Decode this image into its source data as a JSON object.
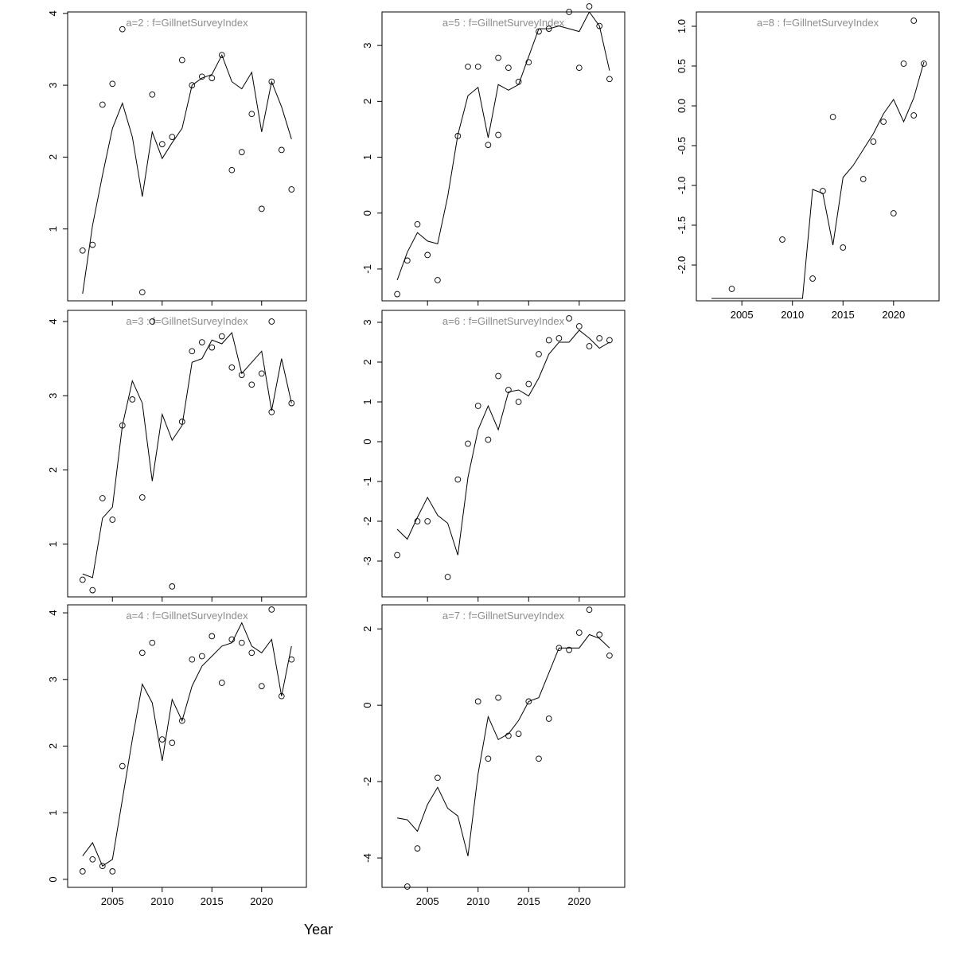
{
  "figure": {
    "xlabel": "Year",
    "colors": {
      "axis": "#000000",
      "line": "#000000",
      "point": "#000000",
      "title": "#8c8c8c",
      "background": "#ffffff"
    }
  },
  "chart_data": [
    {
      "id": "a2",
      "type": "scatter",
      "col": 0,
      "row": 0,
      "title": "a=2  :  f=GillnetSurveyIndex",
      "xlim": [
        2000.5,
        2024.5
      ],
      "x_ticks": [
        2005,
        2010,
        2015,
        2020
      ],
      "show_x_labels": false,
      "ylim": [
        0.0,
        4.02
      ],
      "y_ticks": [
        1,
        2,
        3,
        4
      ],
      "points": [
        [
          2002,
          0.7
        ],
        [
          2003,
          0.78
        ],
        [
          2004,
          2.73
        ],
        [
          2005,
          3.02
        ],
        [
          2006,
          3.78
        ],
        [
          2008,
          0.12
        ],
        [
          2009,
          2.87
        ],
        [
          2010,
          2.18
        ],
        [
          2011,
          2.28
        ],
        [
          2012,
          3.35
        ],
        [
          2013,
          3.0
        ],
        [
          2014,
          3.12
        ],
        [
          2015,
          3.1
        ],
        [
          2016,
          3.42
        ],
        [
          2017,
          1.82
        ],
        [
          2018,
          2.07
        ],
        [
          2019,
          2.6
        ],
        [
          2020,
          1.28
        ],
        [
          2021,
          3.05
        ],
        [
          2022,
          2.1
        ],
        [
          2023,
          1.55
        ]
      ],
      "line": [
        [
          2002,
          0.1
        ],
        [
          2003,
          1.05
        ],
        [
          2004,
          1.75
        ],
        [
          2005,
          2.4
        ],
        [
          2006,
          2.75
        ],
        [
          2007,
          2.28
        ],
        [
          2008,
          1.45
        ],
        [
          2009,
          2.35
        ],
        [
          2010,
          1.98
        ],
        [
          2011,
          2.2
        ],
        [
          2012,
          2.4
        ],
        [
          2013,
          3.0
        ],
        [
          2014,
          3.1
        ],
        [
          2015,
          3.15
        ],
        [
          2016,
          3.42
        ],
        [
          2017,
          3.05
        ],
        [
          2018,
          2.95
        ],
        [
          2019,
          3.18
        ],
        [
          2020,
          2.35
        ],
        [
          2021,
          3.05
        ],
        [
          2022,
          2.7
        ],
        [
          2023,
          2.25
        ]
      ]
    },
    {
      "id": "a5",
      "type": "scatter",
      "col": 1,
      "row": 0,
      "title": "a=5  :  f=GillnetSurveyIndex",
      "xlim": [
        2000.5,
        2024.5
      ],
      "x_ticks": [
        2005,
        2010,
        2015,
        2020
      ],
      "show_x_labels": false,
      "ylim": [
        -1.57,
        3.6
      ],
      "y_ticks": [
        -1,
        0,
        1,
        2,
        3
      ],
      "points": [
        [
          2002,
          -1.45
        ],
        [
          2003,
          -0.85
        ],
        [
          2004,
          -0.2
        ],
        [
          2005,
          -0.75
        ],
        [
          2006,
          -1.2
        ],
        [
          2008,
          1.38
        ],
        [
          2009,
          2.62
        ],
        [
          2010,
          2.62
        ],
        [
          2011,
          1.22
        ],
        [
          2012,
          1.4
        ],
        [
          2012,
          2.78
        ],
        [
          2013,
          2.6
        ],
        [
          2014,
          2.35
        ],
        [
          2015,
          2.7
        ],
        [
          2016,
          3.25
        ],
        [
          2017,
          3.3
        ],
        [
          2019,
          3.6
        ],
        [
          2020,
          2.6
        ],
        [
          2021,
          3.7
        ],
        [
          2022,
          3.35
        ],
        [
          2023,
          2.4
        ]
      ],
      "line": [
        [
          2002,
          -1.2
        ],
        [
          2003,
          -0.7
        ],
        [
          2004,
          -0.35
        ],
        [
          2005,
          -0.5
        ],
        [
          2006,
          -0.55
        ],
        [
          2007,
          0.3
        ],
        [
          2008,
          1.4
        ],
        [
          2009,
          2.1
        ],
        [
          2010,
          2.25
        ],
        [
          2011,
          1.35
        ],
        [
          2012,
          2.3
        ],
        [
          2013,
          2.2
        ],
        [
          2014,
          2.3
        ],
        [
          2015,
          2.8
        ],
        [
          2016,
          3.3
        ],
        [
          2017,
          3.3
        ],
        [
          2018,
          3.35
        ],
        [
          2019,
          3.3
        ],
        [
          2020,
          3.25
        ],
        [
          2021,
          3.6
        ],
        [
          2022,
          3.35
        ],
        [
          2023,
          2.55
        ]
      ]
    },
    {
      "id": "a8",
      "type": "scatter",
      "col": 2,
      "row": 0,
      "title": "a=8  :  f=GillnetSurveyIndex",
      "xlim": [
        2000.5,
        2024.5
      ],
      "x_ticks": [
        2005,
        2010,
        2015,
        2020
      ],
      "show_x_labels": true,
      "ylim": [
        -2.45,
        1.18
      ],
      "y_ticks": [
        -2.0,
        -1.5,
        -1.0,
        -0.5,
        0.0,
        0.5,
        1.0
      ],
      "y_tick_labels": [
        "-2.0",
        "-1.5",
        "-1.0",
        "-0.5",
        "0.0",
        "0.5",
        "1.0"
      ],
      "points": [
        [
          2004,
          -2.3
        ],
        [
          2009,
          -1.68
        ],
        [
          2012,
          -2.17
        ],
        [
          2013,
          -1.07
        ],
        [
          2014,
          -0.14
        ],
        [
          2015,
          -1.78
        ],
        [
          2017,
          -0.92
        ],
        [
          2018,
          -0.45
        ],
        [
          2019,
          -0.2
        ],
        [
          2020,
          -1.35
        ],
        [
          2021,
          0.53
        ],
        [
          2022,
          1.07
        ],
        [
          2022,
          -0.12
        ],
        [
          2023,
          0.53
        ]
      ],
      "line": [
        [
          2002,
          -2.42
        ],
        [
          2003,
          -2.42
        ],
        [
          2004,
          -2.42
        ],
        [
          2005,
          -2.42
        ],
        [
          2006,
          -2.42
        ],
        [
          2007,
          -2.42
        ],
        [
          2008,
          -2.42
        ],
        [
          2009,
          -2.42
        ],
        [
          2010,
          -2.42
        ],
        [
          2011,
          -2.42
        ],
        [
          2012,
          -1.05
        ],
        [
          2013,
          -1.1
        ],
        [
          2014,
          -1.75
        ],
        [
          2015,
          -0.9
        ],
        [
          2016,
          -0.75
        ],
        [
          2017,
          -0.55
        ],
        [
          2018,
          -0.35
        ],
        [
          2019,
          -0.1
        ],
        [
          2020,
          0.08
        ],
        [
          2021,
          -0.2
        ],
        [
          2022,
          0.1
        ],
        [
          2023,
          0.55
        ]
      ]
    },
    {
      "id": "a3",
      "type": "scatter",
      "col": 0,
      "row": 1,
      "title": "a=3  :  f=GillnetSurveyIndex",
      "xlim": [
        2000.5,
        2024.5
      ],
      "x_ticks": [
        2005,
        2010,
        2015,
        2020
      ],
      "show_x_labels": false,
      "ylim": [
        0.29,
        4.15
      ],
      "y_ticks": [
        1,
        2,
        3,
        4
      ],
      "points": [
        [
          2002,
          0.52
        ],
        [
          2003,
          0.38
        ],
        [
          2004,
          1.62
        ],
        [
          2005,
          1.33
        ],
        [
          2006,
          2.6
        ],
        [
          2007,
          2.95
        ],
        [
          2008,
          1.63
        ],
        [
          2009,
          4.0
        ],
        [
          2011,
          0.43
        ],
        [
          2012,
          2.65
        ],
        [
          2013,
          3.6
        ],
        [
          2014,
          3.72
        ],
        [
          2015,
          3.65
        ],
        [
          2016,
          3.8
        ],
        [
          2017,
          3.38
        ],
        [
          2018,
          3.28
        ],
        [
          2019,
          3.15
        ],
        [
          2020,
          3.3
        ],
        [
          2021,
          2.78
        ],
        [
          2021,
          4.0
        ],
        [
          2023,
          2.9
        ]
      ],
      "line": [
        [
          2002,
          0.6
        ],
        [
          2003,
          0.55
        ],
        [
          2004,
          1.35
        ],
        [
          2005,
          1.5
        ],
        [
          2006,
          2.6
        ],
        [
          2007,
          3.2
        ],
        [
          2008,
          2.9
        ],
        [
          2009,
          1.85
        ],
        [
          2010,
          2.75
        ],
        [
          2011,
          2.4
        ],
        [
          2012,
          2.6
        ],
        [
          2013,
          3.45
        ],
        [
          2014,
          3.5
        ],
        [
          2015,
          3.75
        ],
        [
          2016,
          3.7
        ],
        [
          2017,
          3.85
        ],
        [
          2018,
          3.3
        ],
        [
          2019,
          3.45
        ],
        [
          2020,
          3.6
        ],
        [
          2021,
          2.8
        ],
        [
          2022,
          3.5
        ],
        [
          2023,
          2.9
        ]
      ]
    },
    {
      "id": "a6",
      "type": "scatter",
      "col": 1,
      "row": 1,
      "title": "a=6  :  f=GillnetSurveyIndex",
      "xlim": [
        2000.5,
        2024.5
      ],
      "x_ticks": [
        2005,
        2010,
        2015,
        2020
      ],
      "show_x_labels": false,
      "ylim": [
        -3.9,
        3.3
      ],
      "y_ticks": [
        -3,
        -2,
        -1,
        0,
        1,
        2,
        3
      ],
      "points": [
        [
          2002,
          -2.85
        ],
        [
          2004,
          -2.0
        ],
        [
          2005,
          -2.0
        ],
        [
          2007,
          -3.4
        ],
        [
          2008,
          -0.95
        ],
        [
          2009,
          -0.05
        ],
        [
          2010,
          0.9
        ],
        [
          2011,
          0.05
        ],
        [
          2012,
          1.65
        ],
        [
          2013,
          1.3
        ],
        [
          2014,
          1.0
        ],
        [
          2015,
          1.45
        ],
        [
          2016,
          2.2
        ],
        [
          2017,
          2.55
        ],
        [
          2018,
          2.6
        ],
        [
          2019,
          3.1
        ],
        [
          2020,
          2.9
        ],
        [
          2021,
          2.4
        ],
        [
          2022,
          2.6
        ],
        [
          2023,
          2.55
        ]
      ],
      "line": [
        [
          2002,
          -2.2
        ],
        [
          2003,
          -2.45
        ],
        [
          2004,
          -1.9
        ],
        [
          2005,
          -1.4
        ],
        [
          2006,
          -1.85
        ],
        [
          2007,
          -2.05
        ],
        [
          2008,
          -2.85
        ],
        [
          2009,
          -0.9
        ],
        [
          2010,
          0.3
        ],
        [
          2011,
          0.9
        ],
        [
          2012,
          0.3
        ],
        [
          2013,
          1.25
        ],
        [
          2014,
          1.3
        ],
        [
          2015,
          1.15
        ],
        [
          2016,
          1.6
        ],
        [
          2017,
          2.2
        ],
        [
          2018,
          2.5
        ],
        [
          2019,
          2.5
        ],
        [
          2020,
          2.8
        ],
        [
          2021,
          2.6
        ],
        [
          2022,
          2.35
        ],
        [
          2023,
          2.5
        ]
      ]
    },
    {
      "id": "a4",
      "type": "scatter",
      "col": 0,
      "row": 2,
      "title": "a=4  :  f=GillnetSurveyIndex",
      "xlim": [
        2000.5,
        2024.5
      ],
      "x_ticks": [
        2005,
        2010,
        2015,
        2020
      ],
      "show_x_labels": true,
      "ylim": [
        -0.12,
        4.12
      ],
      "y_ticks": [
        0,
        1,
        2,
        3,
        4
      ],
      "points": [
        [
          2002,
          0.12
        ],
        [
          2003,
          0.3
        ],
        [
          2004,
          0.2
        ],
        [
          2005,
          0.12
        ],
        [
          2006,
          1.7
        ],
        [
          2008,
          3.4
        ],
        [
          2009,
          3.55
        ],
        [
          2010,
          2.1
        ],
        [
          2011,
          2.05
        ],
        [
          2012,
          2.38
        ],
        [
          2013,
          3.3
        ],
        [
          2014,
          3.35
        ],
        [
          2015,
          3.65
        ],
        [
          2016,
          2.95
        ],
        [
          2017,
          3.6
        ],
        [
          2018,
          3.55
        ],
        [
          2019,
          3.4
        ],
        [
          2020,
          2.9
        ],
        [
          2021,
          4.05
        ],
        [
          2022,
          2.75
        ],
        [
          2023,
          3.3
        ]
      ],
      "line": [
        [
          2002,
          0.35
        ],
        [
          2003,
          0.55
        ],
        [
          2004,
          0.2
        ],
        [
          2005,
          0.3
        ],
        [
          2006,
          1.2
        ],
        [
          2007,
          2.1
        ],
        [
          2008,
          2.93
        ],
        [
          2009,
          2.65
        ],
        [
          2010,
          1.78
        ],
        [
          2011,
          2.7
        ],
        [
          2012,
          2.38
        ],
        [
          2013,
          2.9
        ],
        [
          2014,
          3.2
        ],
        [
          2015,
          3.35
        ],
        [
          2016,
          3.5
        ],
        [
          2017,
          3.55
        ],
        [
          2018,
          3.85
        ],
        [
          2019,
          3.5
        ],
        [
          2020,
          3.4
        ],
        [
          2021,
          3.6
        ],
        [
          2022,
          2.75
        ],
        [
          2023,
          3.5
        ]
      ]
    },
    {
      "id": "a7",
      "type": "scatter",
      "col": 1,
      "row": 2,
      "title": "a=7  :  f=GillnetSurveyIndex",
      "xlim": [
        2000.5,
        2024.5
      ],
      "x_ticks": [
        2005,
        2010,
        2015,
        2020
      ],
      "show_x_labels": true,
      "ylim": [
        -4.77,
        2.63
      ],
      "y_ticks": [
        -4,
        -2,
        0,
        2
      ],
      "points": [
        [
          2003,
          -4.75
        ],
        [
          2004,
          -3.75
        ],
        [
          2006,
          -1.9
        ],
        [
          2010,
          0.1
        ],
        [
          2011,
          -1.4
        ],
        [
          2012,
          0.2
        ],
        [
          2013,
          -0.8
        ],
        [
          2014,
          -0.75
        ],
        [
          2015,
          0.1
        ],
        [
          2016,
          -1.4
        ],
        [
          2017,
          -0.35
        ],
        [
          2018,
          1.5
        ],
        [
          2019,
          1.45
        ],
        [
          2020,
          1.9
        ],
        [
          2021,
          2.5
        ],
        [
          2022,
          1.85
        ],
        [
          2023,
          1.3
        ]
      ],
      "line": [
        [
          2002,
          -2.95
        ],
        [
          2003,
          -3.0
        ],
        [
          2004,
          -3.3
        ],
        [
          2005,
          -2.6
        ],
        [
          2006,
          -2.15
        ],
        [
          2007,
          -2.7
        ],
        [
          2008,
          -2.9
        ],
        [
          2009,
          -3.95
        ],
        [
          2010,
          -1.8
        ],
        [
          2011,
          -0.3
        ],
        [
          2012,
          -0.9
        ],
        [
          2013,
          -0.75
        ],
        [
          2014,
          -0.4
        ],
        [
          2015,
          0.1
        ],
        [
          2016,
          0.2
        ],
        [
          2017,
          0.85
        ],
        [
          2018,
          1.5
        ],
        [
          2019,
          1.5
        ],
        [
          2020,
          1.5
        ],
        [
          2021,
          1.85
        ],
        [
          2022,
          1.75
        ],
        [
          2023,
          1.5
        ]
      ]
    }
  ]
}
